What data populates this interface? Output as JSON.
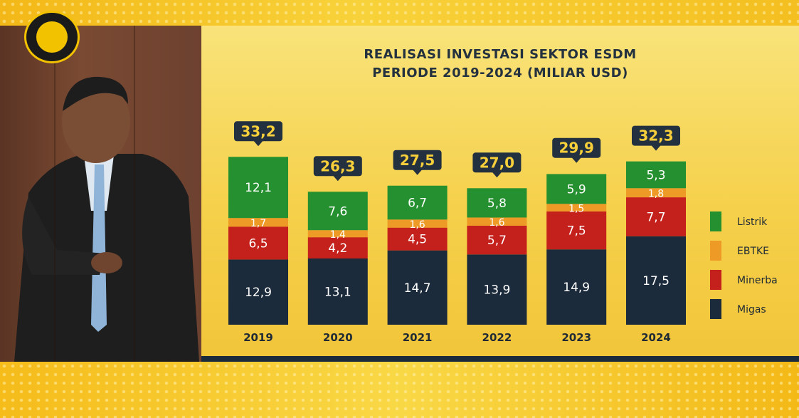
{
  "chart_data": {
    "type": "bar",
    "stacked": true,
    "title": "REALISASI INVESTASI SEKTOR ESDM",
    "subtitle": "PERIODE 2019-2024  (MILIAR USD)",
    "categories": [
      "2019",
      "2020",
      "2021",
      "2022",
      "2023",
      "2024"
    ],
    "category_labels": [
      "2019",
      "2020",
      "2021",
      "2022",
      "2023",
      "2024"
    ],
    "totals": [
      33.2,
      26.3,
      27.5,
      27.0,
      29.9,
      32.3
    ],
    "total_labels": [
      "33,2",
      "26,3",
      "27,5",
      "27,0",
      "29,9",
      "32,3"
    ],
    "series": [
      {
        "name": "Migas",
        "color": "#1c2b3c",
        "values": [
          12.9,
          13.1,
          14.7,
          13.9,
          14.9,
          17.5
        ],
        "labels": [
          "12,9",
          "13,1",
          "14,7",
          "13,9",
          "14,9",
          "17,5"
        ]
      },
      {
        "name": "Minerba",
        "color": "#c4201c",
        "values": [
          6.5,
          4.2,
          4.5,
          5.7,
          7.5,
          7.7
        ],
        "labels": [
          "6,5",
          "4,2",
          "4,5",
          "5,7",
          "7,5",
          "7,7"
        ]
      },
      {
        "name": "EBTKE",
        "color": "#ee9a26",
        "values": [
          1.7,
          1.4,
          1.6,
          1.6,
          1.5,
          1.8
        ],
        "labels": [
          "1,7",
          "1,4",
          "1,6",
          "1,6",
          "1,5",
          "1,8"
        ]
      },
      {
        "name": "Listrik",
        "color": "#24902f",
        "values": [
          12.1,
          7.6,
          6.7,
          5.8,
          5.9,
          5.3
        ],
        "labels": [
          "12,1",
          "7,6",
          "6,7",
          "5,8",
          "5,9",
          "5,3"
        ]
      }
    ],
    "legend": [
      "Listrik",
      "EBTKE",
      "Minerba",
      "Migas"
    ],
    "legend_position": "right",
    "grid": false,
    "total_box_color": "#22303f",
    "total_text_color": "#f7cf3a",
    "axis_label_color": "#1f2a35"
  }
}
